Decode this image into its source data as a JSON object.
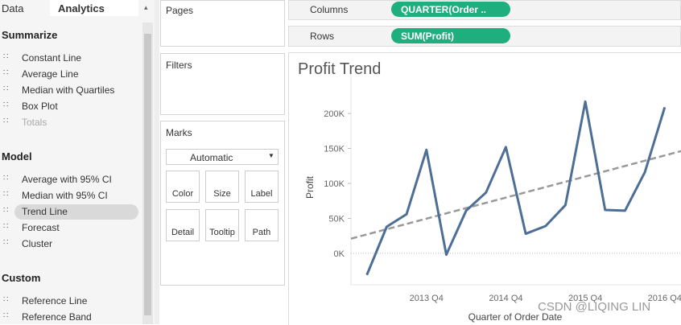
{
  "tabs": [
    "Data",
    "Analytics"
  ],
  "analytics": {
    "sections": [
      {
        "title": "Summarize",
        "items": [
          "Constant Line",
          "Average Line",
          "Median with Quartiles",
          "Box Plot",
          "Totals"
        ]
      },
      {
        "title": "Model",
        "items": [
          "Average with 95% CI",
          "Median with 95% CI",
          "Trend Line",
          "Forecast",
          "Cluster"
        ]
      },
      {
        "title": "Custom",
        "items": [
          "Reference Line",
          "Reference Band"
        ]
      }
    ]
  },
  "cards": {
    "pages": "Pages",
    "filters": "Filters",
    "marks": "Marks"
  },
  "marks": {
    "type": "Automatic",
    "buttons": [
      "Color",
      "Size",
      "Label",
      "Detail",
      "Tooltip",
      "Path"
    ]
  },
  "shelves": {
    "columns": {
      "label": "Columns",
      "pill": "QUARTER(Order .."
    },
    "rows": {
      "label": "Rows",
      "pill": "SUM(Profit)"
    }
  },
  "chart_data": {
    "type": "line",
    "title": "Profit Trend",
    "x_label": "Quarter of Order Date",
    "y_label": "Profit",
    "categories": [
      null,
      null,
      null,
      "2013 Q4",
      null,
      null,
      null,
      "2014 Q4",
      null,
      null,
      null,
      "2015 Q4",
      null,
      null,
      null,
      "2016 Q4"
    ],
    "series": [
      {
        "name": "SUM(Profit)",
        "color": "#4e6f95",
        "values": [
          -31000,
          38000,
          56000,
          148000,
          -2000,
          61000,
          87000,
          152000,
          28000,
          39000,
          69000,
          217000,
          62000,
          61000,
          116000,
          209000
        ]
      }
    ],
    "trend": {
      "color": "#999999",
      "values": [
        27000,
        140000
      ]
    },
    "ylim": [
      -45000,
      245000
    ],
    "yticks": [
      {
        "value": 0,
        "label": "0K"
      },
      {
        "value": 50000,
        "label": "50K"
      },
      {
        "value": 100000,
        "label": "100K"
      },
      {
        "value": 150000,
        "label": "150K"
      },
      {
        "value": 200000,
        "label": "200K"
      }
    ]
  },
  "watermark": "CSDN @LIQING LIN"
}
